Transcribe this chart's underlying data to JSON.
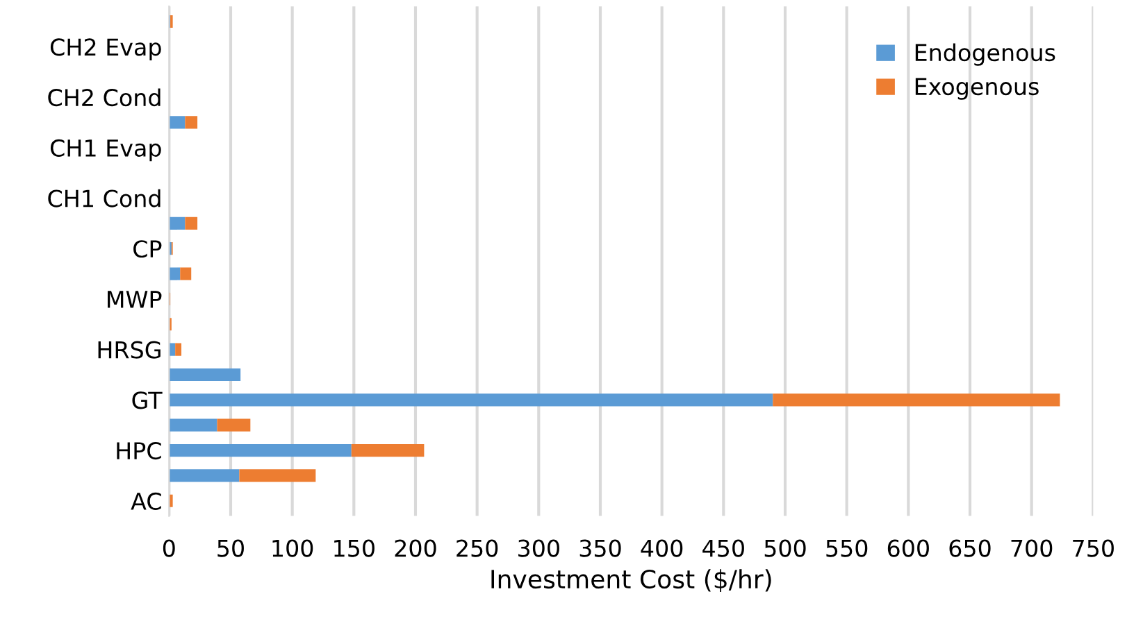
{
  "chart_data": {
    "type": "bar",
    "orientation": "horizontal",
    "stacked": true,
    "xlabel": "Investment Cost ($/hr)",
    "categories": [
      null,
      "CH2 Evap",
      null,
      "CH2 Cond",
      null,
      "CH1 Evap",
      null,
      "CH1 Cond",
      null,
      "CP",
      null,
      "MWP",
      null,
      "HRSG",
      null,
      "GT",
      null,
      "HPC",
      null,
      "AC"
    ],
    "series": [
      {
        "name": "Endogenous",
        "color": "#5b9bd5",
        "values": [
          1,
          0,
          0,
          0,
          13,
          0,
          0,
          0,
          13,
          2,
          9,
          0,
          0,
          5,
          58,
          490,
          39,
          148,
          57,
          0
        ]
      },
      {
        "name": "Exogenous",
        "color": "#ed7d31",
        "values": [
          2,
          0,
          0,
          0,
          10,
          0,
          0,
          0,
          10,
          1,
          9,
          1,
          2,
          5,
          0,
          233,
          27,
          59,
          62,
          3
        ]
      }
    ],
    "xlim": [
      0,
      750
    ],
    "xticks": [
      0,
      50,
      100,
      150,
      200,
      250,
      300,
      350,
      400,
      450,
      500,
      550,
      600,
      650,
      700,
      750
    ],
    "grid": "x",
    "legend": "top right"
  }
}
